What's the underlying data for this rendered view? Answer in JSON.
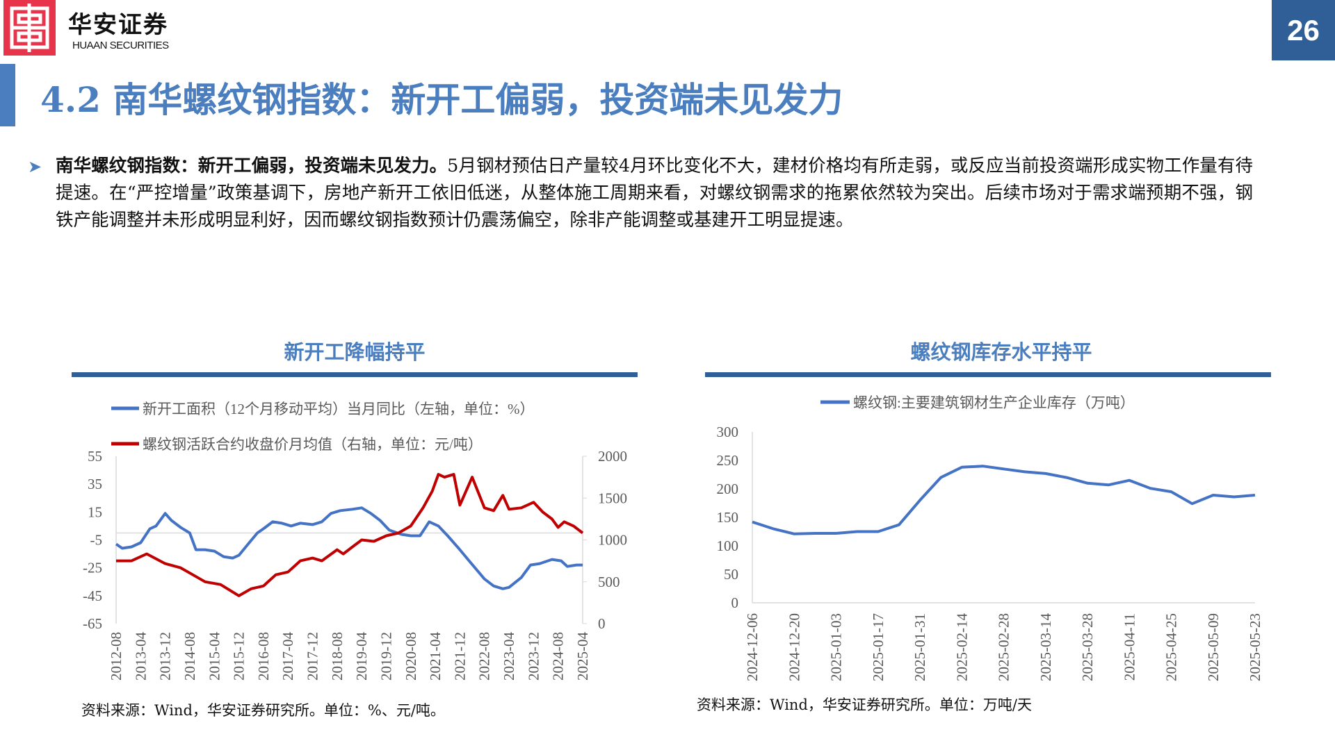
{
  "header": {
    "logo_cn": "华安证券",
    "logo_en": "HUAAN SECURITIES",
    "page_number": "26"
  },
  "title": "4.2 南华螺纹钢指数：新开工偏弱，投资端未见发力",
  "paragraph": {
    "bold_lead": "南华螺纹钢指数：新开工偏弱，投资端未见发力。",
    "body": "5月钢材预估日产量较4月环比变化不大，建材价格均有所走弱，或反应当前投资端形成实物工作量有待提速。在“严控增量”政策基调下，房地产新开工依旧低迷，从整体施工周期来看，对螺纹钢需求的拖累依然较为突出。后续市场对于需求端预期不强，钢铁产能调整并未形成明显利好，因而螺纹钢指数预计仍震荡偏空，除非产能调整或基建开工明显提速。"
  },
  "colors": {
    "accent": "#4a7ebf",
    "dark_blue": "#2f5f96",
    "series_blue": "#4472c4",
    "series_red": "#c00000",
    "logo_red": "#e8344b"
  },
  "chart_data": [
    {
      "type": "line",
      "title": "新开工降幅持平",
      "source": "资料来源：Wind，华安证券研究所。单位：%、元/吨。",
      "left_axis": {
        "ticks": [
          "55",
          "35",
          "15",
          "-5",
          "-25",
          "-45",
          "-65"
        ],
        "ylim": [
          -65,
          55
        ]
      },
      "right_axis": {
        "ticks": [
          "2000",
          "1500",
          "1000",
          "500",
          "0"
        ],
        "ylim": [
          0,
          2000
        ]
      },
      "x_ticks": [
        "2012-08",
        "2013-04",
        "2013-12",
        "2014-08",
        "2015-04",
        "2015-12",
        "2016-08",
        "2017-04",
        "2017-12",
        "2018-08",
        "2019-04",
        "2019-12",
        "2020-08",
        "2021-04",
        "2021-12",
        "2022-08",
        "2023-04",
        "2023-12",
        "2024-08",
        "2025-04"
      ],
      "x_range": [
        "2012-08",
        "2025-04"
      ],
      "series": [
        {
          "name": "新开工面积（12个月移动平均）当月同比（左轴，单位：%）",
          "axis": "left",
          "color": "#4472c4",
          "points": [
            [
              "2012-08",
              -8
            ],
            [
              "2012-10",
              -11
            ],
            [
              "2013-01",
              -10
            ],
            [
              "2013-04",
              -7
            ],
            [
              "2013-07",
              3
            ],
            [
              "2013-09",
              5
            ],
            [
              "2013-12",
              14
            ],
            [
              "2014-02",
              9
            ],
            [
              "2014-05",
              4
            ],
            [
              "2014-08",
              0
            ],
            [
              "2014-10",
              -12
            ],
            [
              "2015-01",
              -12
            ],
            [
              "2015-04",
              -13
            ],
            [
              "2015-07",
              -17
            ],
            [
              "2015-10",
              -18
            ],
            [
              "2015-12",
              -16
            ],
            [
              "2016-03",
              -8
            ],
            [
              "2016-06",
              0
            ],
            [
              "2016-08",
              3
            ],
            [
              "2016-11",
              8
            ],
            [
              "2017-02",
              7
            ],
            [
              "2017-05",
              5
            ],
            [
              "2017-08",
              7
            ],
            [
              "2017-12",
              6
            ],
            [
              "2018-03",
              8
            ],
            [
              "2018-06",
              14
            ],
            [
              "2018-09",
              16
            ],
            [
              "2019-01",
              17
            ],
            [
              "2019-04",
              18
            ],
            [
              "2019-07",
              14
            ],
            [
              "2019-10",
              9
            ],
            [
              "2020-01",
              2
            ],
            [
              "2020-05",
              -1
            ],
            [
              "2020-08",
              -2
            ],
            [
              "2020-11",
              -2
            ],
            [
              "2021-02",
              8
            ],
            [
              "2021-05",
              5
            ],
            [
              "2021-08",
              -2
            ],
            [
              "2021-12",
              -12
            ],
            [
              "2022-03",
              -20
            ],
            [
              "2022-08",
              -33
            ],
            [
              "2022-11",
              -38
            ],
            [
              "2023-02",
              -40
            ],
            [
              "2023-04",
              -39
            ],
            [
              "2023-08",
              -32
            ],
            [
              "2023-11",
              -23
            ],
            [
              "2024-02",
              -22
            ],
            [
              "2024-06",
              -19
            ],
            [
              "2024-09",
              -20
            ],
            [
              "2024-11",
              -24
            ],
            [
              "2025-02",
              -23
            ],
            [
              "2025-04",
              -23
            ]
          ]
        },
        {
          "name": "螺纹钢活跃合约收盘价月均值（右轴，单位：元/吨）",
          "axis": "right",
          "color": "#c00000",
          "points": [
            [
              "2012-08",
              750
            ],
            [
              "2013-01",
              750
            ],
            [
              "2013-06",
              833
            ],
            [
              "2013-12",
              717
            ],
            [
              "2014-05",
              667
            ],
            [
              "2014-09",
              583
            ],
            [
              "2015-01",
              500
            ],
            [
              "2015-06",
              467
            ],
            [
              "2015-12",
              333
            ],
            [
              "2016-04",
              417
            ],
            [
              "2016-08",
              450
            ],
            [
              "2016-12",
              583
            ],
            [
              "2017-04",
              617
            ],
            [
              "2017-08",
              750
            ],
            [
              "2017-12",
              783
            ],
            [
              "2018-03",
              750
            ],
            [
              "2018-08",
              883
            ],
            [
              "2018-10",
              833
            ],
            [
              "2019-01",
              917
            ],
            [
              "2019-04",
              1000
            ],
            [
              "2019-08",
              983
            ],
            [
              "2019-12",
              1050
            ],
            [
              "2020-04",
              1083
            ],
            [
              "2020-08",
              1167
            ],
            [
              "2020-12",
              1383
            ],
            [
              "2021-03",
              1583
            ],
            [
              "2021-05",
              1783
            ],
            [
              "2021-07",
              1750
            ],
            [
              "2021-10",
              1783
            ],
            [
              "2021-12",
              1417
            ],
            [
              "2022-04",
              1750
            ],
            [
              "2022-08",
              1383
            ],
            [
              "2022-11",
              1350
            ],
            [
              "2023-02",
              1533
            ],
            [
              "2023-04",
              1367
            ],
            [
              "2023-08",
              1383
            ],
            [
              "2023-12",
              1450
            ],
            [
              "2024-03",
              1333
            ],
            [
              "2024-06",
              1250
            ],
            [
              "2024-08",
              1150
            ],
            [
              "2024-10",
              1217
            ],
            [
              "2025-01",
              1167
            ],
            [
              "2025-04",
              1083
            ]
          ]
        }
      ]
    },
    {
      "type": "line",
      "title": "螺纹钢库存水平持平",
      "source": "资料来源：Wind，华安证券研究所。单位：万吨/天",
      "y_ticks": [
        "300",
        "250",
        "200",
        "150",
        "100",
        "50",
        "0"
      ],
      "ylim": [
        0,
        300
      ],
      "x_ticks": [
        "2024-12-06",
        "2024-12-20",
        "2025-01-03",
        "2025-01-17",
        "2025-01-31",
        "2025-02-14",
        "2025-02-28",
        "2025-03-14",
        "2025-03-28",
        "2025-04-11",
        "2025-04-25",
        "2025-05-09",
        "2025-05-23"
      ],
      "series": [
        {
          "name": "螺纹钢:主要建筑钢材生产企业库存（万吨）",
          "color": "#4472c4",
          "values": [
            142,
            130,
            121,
            122,
            122,
            125,
            125,
            137,
            180,
            220,
            238,
            240,
            235,
            230,
            227,
            220,
            210,
            207,
            215,
            201,
            195,
            174,
            189,
            186,
            189
          ]
        }
      ]
    }
  ]
}
